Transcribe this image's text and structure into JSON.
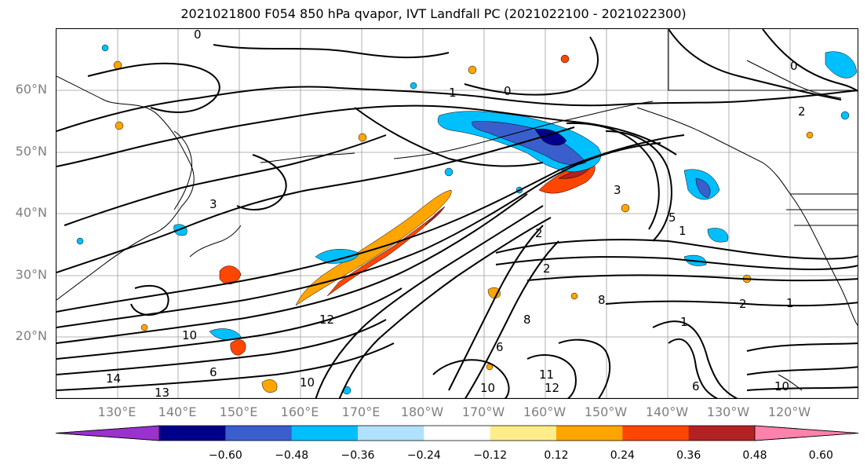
{
  "title": "2021021800 F054 850 hPa qvapor, IVT Landfall PC (2021022100 - 2021022300)",
  "lat_labels": [
    "60°N",
    "50°N",
    "40°N",
    "30°N",
    "20°N"
  ],
  "lon_labels": [
    "130°E",
    "140°E",
    "150°E",
    "160°E",
    "170°E",
    "180°W",
    "170°W",
    "160°W",
    "150°W",
    "140°W",
    "130°W",
    "120°W"
  ],
  "colorbar": {
    "colors": [
      "#9a32cd",
      "#00008b",
      "#3a5fcd",
      "#00bfff",
      "#b0e2ff",
      "#ffffff",
      "#ffec8b",
      "#ffa500",
      "#ff4500",
      "#b22222",
      "#ff82ab"
    ],
    "tick_labels": [
      "−0.60",
      "−0.48",
      "−0.36",
      "−0.24",
      "−0.12",
      "0.12",
      "0.24",
      "0.36",
      "0.48",
      "0.60"
    ]
  },
  "contour_labels": [
    "0",
    "1",
    "0",
    "2",
    "2",
    "3",
    "5",
    "1",
    "2",
    "1",
    "10",
    "12",
    "14",
    "13",
    "10",
    "11",
    "12",
    "10",
    "8",
    "6",
    "8",
    "10",
    "6",
    "6",
    "3",
    "2",
    "1",
    "0"
  ]
}
